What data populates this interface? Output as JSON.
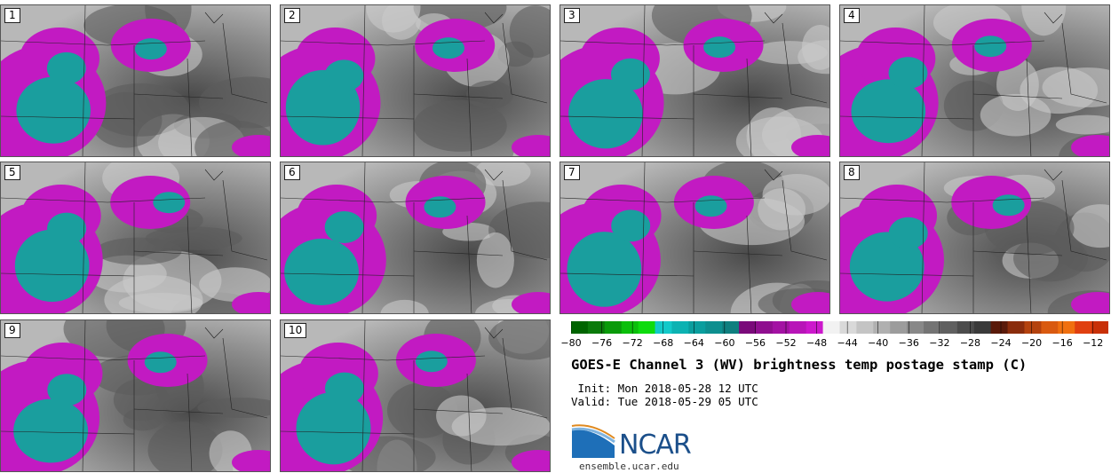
{
  "title": "GOES-E Channel 3 (WV) brightness temp postage stamp (C)",
  "init_text": " Init: Mon 2018-05-28 12 UTC",
  "valid_text": "Valid: Tue 2018-05-29 05 UTC",
  "logo_text": "NCAR",
  "url_text": "ensemble.ucar.edu",
  "panels": [
    {
      "label": "1"
    },
    {
      "label": "2"
    },
    {
      "label": "3"
    },
    {
      "label": "4"
    },
    {
      "label": "5"
    },
    {
      "label": "6"
    },
    {
      "label": "7"
    },
    {
      "label": "8"
    },
    {
      "label": "9"
    },
    {
      "label": "10"
    }
  ],
  "chart_data": {
    "type": "heatmap",
    "colorbar": {
      "min": -80,
      "max": -10,
      "tick_labels": [
        "−80",
        "−76",
        "−72",
        "−68",
        "−64",
        "−60",
        "−56",
        "−52",
        "−48",
        "−44",
        "−40",
        "−36",
        "−32",
        "−28",
        "−24",
        "−20",
        "−16",
        "−12"
      ],
      "ticks": [
        -80,
        -76,
        -72,
        -68,
        -64,
        -60,
        -56,
        -52,
        -48,
        -44,
        -40,
        -36,
        -32,
        -28,
        -24,
        -20,
        -16,
        -12
      ],
      "colors": [
        "#006400",
        "#0b7a0b",
        "#0a9a0a",
        "#0bbf0b",
        "#0ddb0d",
        "#12c9c9",
        "#0cb2b2",
        "#0a9e9e",
        "#0d8f8f",
        "#0f7f7f",
        "#7a0a7a",
        "#8f0f8f",
        "#a312a3",
        "#b815b8",
        "#cc18cc",
        "#f2f2f2",
        "#d9d9d9",
        "#c4c4c4",
        "#b0b0b0",
        "#9c9c9c",
        "#888888",
        "#747474",
        "#606060",
        "#4c4c4c",
        "#3a3a3a",
        "#5a1a0a",
        "#8a2c0c",
        "#b4420e",
        "#d95a10",
        "#f07010",
        "#e04010",
        "#c83008"
      ]
    }
  }
}
